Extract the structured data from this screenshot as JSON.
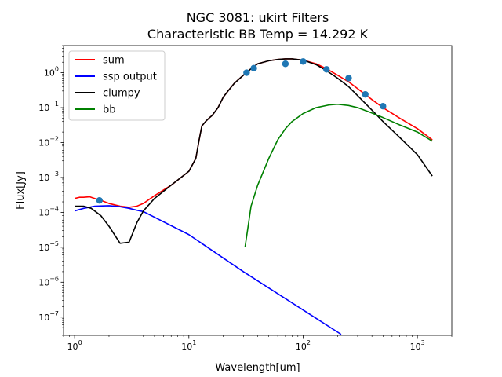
{
  "chart_data": {
    "type": "line",
    "title": "NGC 3081: ukirt Filters",
    "subtitle": "Characteristic BB Temp = 14.292 K",
    "xlabel": "Wavelength[um]",
    "ylabel": "Flux[Jy]",
    "xscale": "log",
    "yscale": "log",
    "xlim": [
      0.8,
      2000
    ],
    "ylim": [
      3e-08,
      6
    ],
    "grid": false,
    "legend_position": "upper-left",
    "x_ticks": [
      {
        "value": 1,
        "base": "10",
        "exp": "0"
      },
      {
        "value": 10,
        "base": "10",
        "exp": "1"
      },
      {
        "value": 100,
        "base": "10",
        "exp": "2"
      },
      {
        "value": 1000,
        "base": "10",
        "exp": "3"
      }
    ],
    "y_ticks": [
      {
        "value": 1e-07,
        "base": "10",
        "exp": "−7"
      },
      {
        "value": 1e-06,
        "base": "10",
        "exp": "−6"
      },
      {
        "value": 1e-05,
        "base": "10",
        "exp": "−5"
      },
      {
        "value": 0.0001,
        "base": "10",
        "exp": "−4"
      },
      {
        "value": 0.001,
        "base": "10",
        "exp": "−3"
      },
      {
        "value": 0.01,
        "base": "10",
        "exp": "−2"
      },
      {
        "value": 0.1,
        "base": "10",
        "exp": "−1"
      },
      {
        "value": 1,
        "base": "10",
        "exp": "0"
      }
    ],
    "series": [
      {
        "name": "sum",
        "color": "#ff0000",
        "points": [
          [
            1.0,
            0.00025
          ],
          [
            1.1,
            0.00027
          ],
          [
            1.2,
            0.00027
          ],
          [
            1.35,
            0.00028
          ],
          [
            1.5,
            0.00025
          ],
          [
            1.7,
            0.00022
          ],
          [
            2.0,
            0.00018
          ],
          [
            2.5,
            0.00015
          ],
          [
            3.0,
            0.00014
          ],
          [
            3.5,
            0.00015
          ],
          [
            4.0,
            0.00018
          ],
          [
            5.0,
            0.0003
          ],
          [
            7.0,
            0.0006
          ],
          [
            10.0,
            0.0015
          ],
          [
            11.5,
            0.0035
          ],
          [
            12.3,
            0.012
          ],
          [
            13.0,
            0.03
          ],
          [
            14.0,
            0.04
          ],
          [
            15.0,
            0.05
          ],
          [
            16.0,
            0.06
          ],
          [
            18.0,
            0.1
          ],
          [
            20.0,
            0.2
          ],
          [
            22.0,
            0.3
          ],
          [
            25.0,
            0.5
          ],
          [
            30.0,
            0.85
          ],
          [
            35.0,
            1.3
          ],
          [
            40.0,
            1.8
          ],
          [
            50.0,
            2.2
          ],
          [
            60.0,
            2.4
          ],
          [
            70.0,
            2.5
          ],
          [
            80.0,
            2.5
          ],
          [
            100.0,
            2.3
          ],
          [
            130.0,
            1.8
          ],
          [
            160.0,
            1.3
          ],
          [
            200.0,
            0.85
          ],
          [
            250.0,
            0.55
          ],
          [
            300.0,
            0.35
          ],
          [
            400.0,
            0.17
          ],
          [
            500.0,
            0.1
          ],
          [
            700.0,
            0.05
          ],
          [
            1000.0,
            0.025
          ],
          [
            1350.0,
            0.012
          ]
        ]
      },
      {
        "name": "ssp output",
        "color": "#0000ff",
        "points": [
          [
            1.0,
            0.00011
          ],
          [
            1.2,
            0.00013
          ],
          [
            1.5,
            0.00015
          ],
          [
            2.0,
            0.000155
          ],
          [
            2.5,
            0.000145
          ],
          [
            3.0,
            0.00013
          ],
          [
            3.5,
            0.000115
          ],
          [
            4.0,
            0.000105
          ],
          [
            10.0,
            2.3e-05
          ],
          [
            30.0,
            2e-06
          ],
          [
            100.0,
            1.6e-07
          ],
          [
            215.0,
            3.2e-08
          ]
        ]
      },
      {
        "name": "clumpy",
        "color": "#000000",
        "points": [
          [
            1.0,
            0.00015
          ],
          [
            1.2,
            0.00015
          ],
          [
            1.4,
            0.00013
          ],
          [
            1.7,
            8e-05
          ],
          [
            2.0,
            4e-05
          ],
          [
            2.5,
            1.3e-05
          ],
          [
            3.0,
            1.4e-05
          ],
          [
            3.5,
            5e-05
          ],
          [
            4.0,
            0.00011
          ],
          [
            5.0,
            0.00025
          ],
          [
            7.0,
            0.0006
          ],
          [
            10.0,
            0.0015
          ],
          [
            11.5,
            0.0035
          ],
          [
            12.3,
            0.012
          ],
          [
            13.0,
            0.03
          ],
          [
            14.0,
            0.04
          ],
          [
            15.0,
            0.05
          ],
          [
            16.0,
            0.06
          ],
          [
            18.0,
            0.1
          ],
          [
            20.0,
            0.2
          ],
          [
            22.0,
            0.3
          ],
          [
            25.0,
            0.5
          ],
          [
            30.0,
            0.85
          ],
          [
            35.0,
            1.3
          ],
          [
            40.0,
            1.8
          ],
          [
            50.0,
            2.2
          ],
          [
            60.0,
            2.4
          ],
          [
            70.0,
            2.5
          ],
          [
            80.0,
            2.5
          ],
          [
            100.0,
            2.3
          ],
          [
            130.0,
            1.7
          ],
          [
            160.0,
            1.15
          ],
          [
            200.0,
            0.7
          ],
          [
            250.0,
            0.4
          ],
          [
            300.0,
            0.22
          ],
          [
            400.0,
            0.085
          ],
          [
            500.0,
            0.04
          ],
          [
            700.0,
            0.014
          ],
          [
            1000.0,
            0.0045
          ],
          [
            1350.0,
            0.0011
          ]
        ]
      },
      {
        "name": "bb",
        "color": "#008000",
        "points": [
          [
            31.0,
            1e-05
          ],
          [
            33.0,
            4e-05
          ],
          [
            35.0,
            0.00015
          ],
          [
            40.0,
            0.0006
          ],
          [
            50.0,
            0.0035
          ],
          [
            60.0,
            0.012
          ],
          [
            70.0,
            0.025
          ],
          [
            80.0,
            0.04
          ],
          [
            100.0,
            0.068
          ],
          [
            130.0,
            0.1
          ],
          [
            170.0,
            0.12
          ],
          [
            200.0,
            0.125
          ],
          [
            250.0,
            0.115
          ],
          [
            300.0,
            0.1
          ],
          [
            400.0,
            0.07
          ],
          [
            500.0,
            0.052
          ],
          [
            700.0,
            0.032
          ],
          [
            1000.0,
            0.02
          ],
          [
            1350.0,
            0.011
          ]
        ]
      }
    ],
    "observations": {
      "color": "#1f77b4",
      "points": [
        [
          1.65,
          0.00022
        ],
        [
          32.0,
          1.0
        ],
        [
          37.0,
          1.35
        ],
        [
          70.0,
          1.8
        ],
        [
          100.0,
          2.1
        ],
        [
          160.0,
          1.25
        ],
        [
          250.0,
          0.7
        ],
        [
          350.0,
          0.24
        ],
        [
          500.0,
          0.11
        ]
      ]
    }
  }
}
